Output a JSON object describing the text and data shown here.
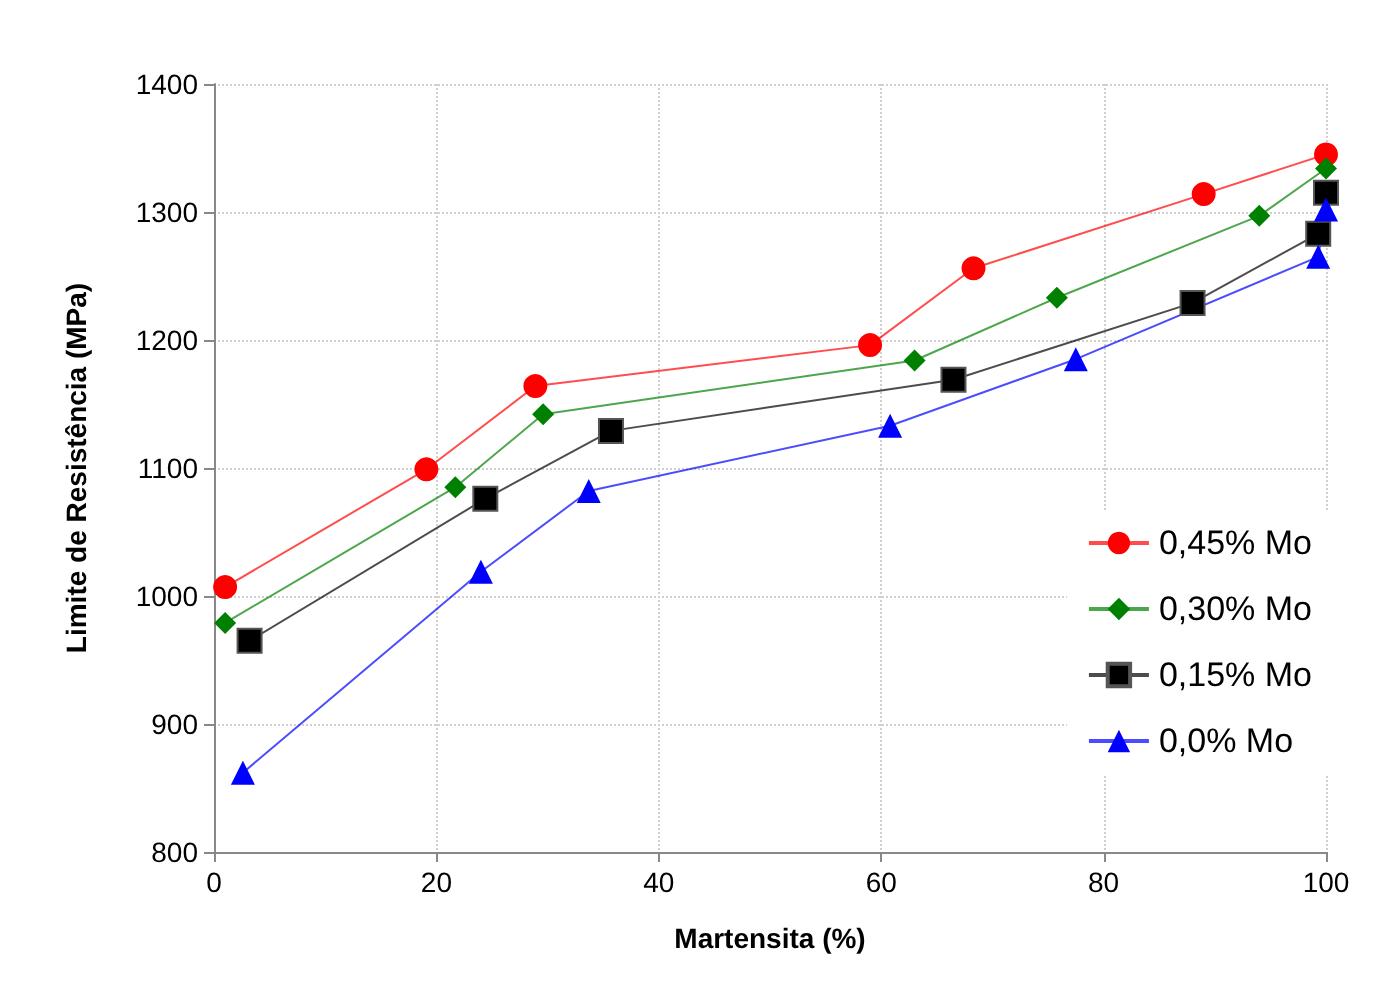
{
  "chart_data": {
    "type": "line",
    "xlabel": "Martensita (%)",
    "ylabel": "Limite de Resistência (MPa)",
    "xlim": [
      0,
      100
    ],
    "xticks": [
      0,
      20,
      40,
      60,
      80,
      100
    ],
    "ylim": [
      800,
      1400
    ],
    "yticks": [
      800,
      900,
      1000,
      1100,
      1200,
      1300,
      1400
    ],
    "grid": true,
    "legend": "right",
    "series": [
      {
        "name": "0,45% Mo",
        "color": "#ff0000",
        "marker": "circle",
        "x": [
          1,
          19.1,
          28.9,
          59,
          68.3,
          89,
          100
        ],
        "values": [
          1007,
          1099,
          1164,
          1196,
          1256,
          1314,
          1345
        ]
      },
      {
        "name": "0,30% Mo",
        "color": "#008000",
        "marker": "diamond",
        "x": [
          1,
          21.7,
          29.6,
          63,
          75.8,
          94,
          100
        ],
        "values": [
          979,
          1085,
          1142,
          1184,
          1233,
          1297,
          1334
        ]
      },
      {
        "name": "0,15% Mo",
        "color": "#000000",
        "marker": "square",
        "x": [
          3.2,
          24.4,
          35.7,
          66.5,
          88,
          99.3,
          100
        ],
        "values": [
          965,
          1076,
          1129,
          1169,
          1229,
          1283,
          1315
        ]
      },
      {
        "name": "0,0% Mo",
        "color": "#0000ff",
        "marker": "triangle",
        "x": [
          2.6,
          24,
          33.7,
          60.8,
          77.5,
          99.3,
          100
        ],
        "values": [
          862,
          1019,
          1082,
          1133,
          1185,
          1265,
          1302
        ]
      }
    ]
  }
}
